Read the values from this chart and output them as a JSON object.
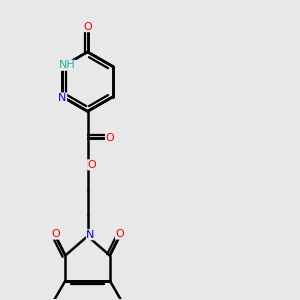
{
  "background_color": "#e8e8e8",
  "atom_colors": {
    "C": "#000000",
    "N": "#0000ff",
    "O": "#ff0000",
    "H": "#20b2aa"
  },
  "bond_color": "#000000",
  "bond_width": 1.8,
  "figsize": [
    3.0,
    3.0
  ],
  "dpi": 100
}
